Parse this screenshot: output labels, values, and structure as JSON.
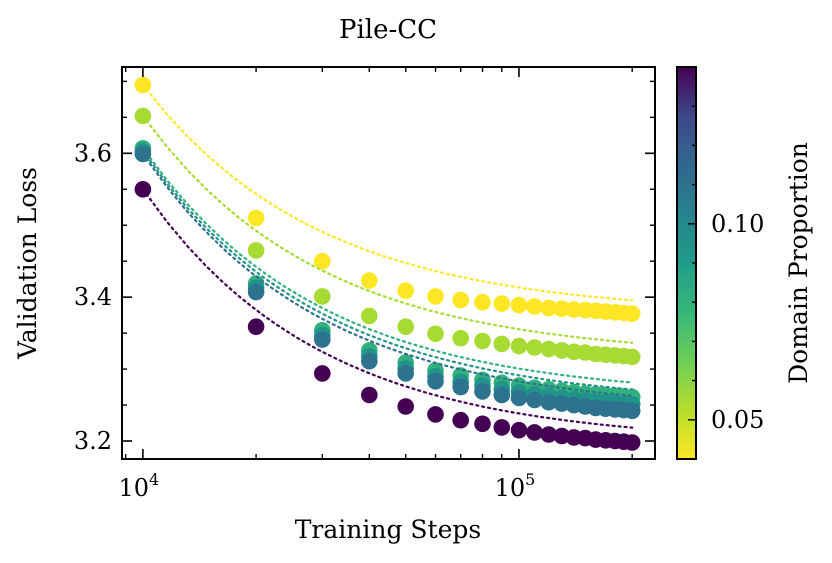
{
  "chart_data": {
    "type": "scatter",
    "title": "Pile-CC",
    "xlabel": "Training Steps",
    "ylabel": "Validation Loss",
    "xscale": "log",
    "xlim": [
      8800,
      230000
    ],
    "ylim": [
      3.175,
      3.72
    ],
    "x_tick_labels": [
      {
        "value": 10000,
        "base": "10",
        "exp": "4"
      },
      {
        "value": 100000,
        "base": "10",
        "exp": "5"
      }
    ],
    "y_ticks": [
      3.2,
      3.4,
      3.6
    ],
    "y_tick_labels": [
      "3.2",
      "3.4",
      "3.6"
    ],
    "colorbar": {
      "label": "Domain Proportion",
      "range": [
        0.04,
        0.14
      ],
      "ticks": [
        0.05,
        0.1
      ],
      "tick_labels": [
        "0.05",
        "0.10"
      ],
      "colormap": "viridis_r"
    },
    "x": [
      10000,
      20000,
      30000,
      40000,
      50000,
      60000,
      70000,
      80000,
      90000,
      100000,
      110000,
      120000,
      130000,
      140000,
      150000,
      160000,
      170000,
      180000,
      190000,
      200000
    ],
    "series": [
      {
        "name": "0.04",
        "proportion": 0.04,
        "values": [
          3.695,
          3.51,
          3.45,
          3.423,
          3.409,
          3.401,
          3.396,
          3.393,
          3.391,
          3.389,
          3.387,
          3.385,
          3.384,
          3.383,
          3.382,
          3.381,
          3.38,
          3.379,
          3.378,
          3.377
        ]
      },
      {
        "name": "0.055",
        "proportion": 0.055,
        "values": [
          3.652,
          3.465,
          3.401,
          3.374,
          3.359,
          3.349,
          3.343,
          3.339,
          3.335,
          3.332,
          3.33,
          3.328,
          3.326,
          3.324,
          3.323,
          3.321,
          3.32,
          3.319,
          3.318,
          3.317
        ]
      },
      {
        "name": "0.08",
        "proportion": 0.08,
        "values": [
          3.607,
          3.419,
          3.354,
          3.326,
          3.309,
          3.298,
          3.291,
          3.285,
          3.281,
          3.277,
          3.274,
          3.272,
          3.27,
          3.268,
          3.266,
          3.265,
          3.264,
          3.263,
          3.262,
          3.261
        ]
      },
      {
        "name": "0.095",
        "proportion": 0.095,
        "values": [
          3.603,
          3.413,
          3.347,
          3.318,
          3.301,
          3.29,
          3.282,
          3.277,
          3.272,
          3.268,
          3.265,
          3.263,
          3.26,
          3.258,
          3.257,
          3.255,
          3.254,
          3.253,
          3.252,
          3.251
        ]
      },
      {
        "name": "0.11",
        "proportion": 0.11,
        "values": [
          3.599,
          3.407,
          3.341,
          3.311,
          3.294,
          3.283,
          3.275,
          3.269,
          3.264,
          3.26,
          3.257,
          3.254,
          3.252,
          3.25,
          3.248,
          3.246,
          3.245,
          3.244,
          3.243,
          3.242
        ]
      },
      {
        "name": "0.14",
        "proportion": 0.14,
        "values": [
          3.55,
          3.359,
          3.294,
          3.264,
          3.248,
          3.237,
          3.229,
          3.224,
          3.219,
          3.215,
          3.212,
          3.209,
          3.207,
          3.205,
          3.204,
          3.202,
          3.201,
          3.2,
          3.199,
          3.198
        ]
      }
    ]
  }
}
